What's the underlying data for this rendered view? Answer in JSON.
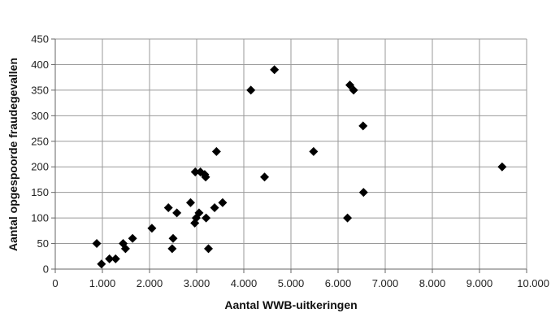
{
  "chart_data": {
    "type": "scatter",
    "title": "",
    "xlabel": "Aantal WWB-uitkeringen",
    "ylabel": "Aantal opgespoorde fraudegevallen",
    "xlim": [
      0,
      10000
    ],
    "ylim": [
      0,
      450
    ],
    "grid": true,
    "marker": "diamond",
    "marker_color": "#000000",
    "x_ticks": [
      {
        "value": 0,
        "label": "0"
      },
      {
        "value": 1000,
        "label": "1.000"
      },
      {
        "value": 2000,
        "label": "2.000"
      },
      {
        "value": 3000,
        "label": "3.000"
      },
      {
        "value": 4000,
        "label": "4.000"
      },
      {
        "value": 5000,
        "label": "5.000"
      },
      {
        "value": 6000,
        "label": "6.000"
      },
      {
        "value": 7000,
        "label": "7.000"
      },
      {
        "value": 8000,
        "label": "8.000"
      },
      {
        "value": 9000,
        "label": "9.000"
      },
      {
        "value": 10000,
        "label": "10.000"
      }
    ],
    "y_ticks": [
      {
        "value": 0,
        "label": "0"
      },
      {
        "value": 50,
        "label": "50"
      },
      {
        "value": 100,
        "label": "100"
      },
      {
        "value": 150,
        "label": "150"
      },
      {
        "value": 200,
        "label": "200"
      },
      {
        "value": 250,
        "label": "250"
      },
      {
        "value": 300,
        "label": "300"
      },
      {
        "value": 350,
        "label": "350"
      },
      {
        "value": 400,
        "label": "400"
      },
      {
        "value": 450,
        "label": "450"
      }
    ],
    "points": [
      {
        "x": 880,
        "y": 50
      },
      {
        "x": 980,
        "y": 10
      },
      {
        "x": 1150,
        "y": 20
      },
      {
        "x": 1280,
        "y": 20
      },
      {
        "x": 1440,
        "y": 50
      },
      {
        "x": 1490,
        "y": 40
      },
      {
        "x": 1640,
        "y": 60
      },
      {
        "x": 2050,
        "y": 80
      },
      {
        "x": 2400,
        "y": 120
      },
      {
        "x": 2480,
        "y": 40
      },
      {
        "x": 2500,
        "y": 60
      },
      {
        "x": 2580,
        "y": 110
      },
      {
        "x": 2870,
        "y": 130
      },
      {
        "x": 2960,
        "y": 90
      },
      {
        "x": 2970,
        "y": 190
      },
      {
        "x": 2990,
        "y": 100
      },
      {
        "x": 3050,
        "y": 110
      },
      {
        "x": 3080,
        "y": 190
      },
      {
        "x": 3170,
        "y": 185
      },
      {
        "x": 3190,
        "y": 180
      },
      {
        "x": 3200,
        "y": 100
      },
      {
        "x": 3250,
        "y": 40
      },
      {
        "x": 3380,
        "y": 120
      },
      {
        "x": 3420,
        "y": 230
      },
      {
        "x": 3550,
        "y": 130
      },
      {
        "x": 4150,
        "y": 350
      },
      {
        "x": 4440,
        "y": 180
      },
      {
        "x": 4650,
        "y": 390
      },
      {
        "x": 5480,
        "y": 230
      },
      {
        "x": 6200,
        "y": 100
      },
      {
        "x": 6250,
        "y": 360
      },
      {
        "x": 6330,
        "y": 350
      },
      {
        "x": 6530,
        "y": 280
      },
      {
        "x": 6540,
        "y": 150
      },
      {
        "x": 9480,
        "y": 200
      }
    ]
  }
}
